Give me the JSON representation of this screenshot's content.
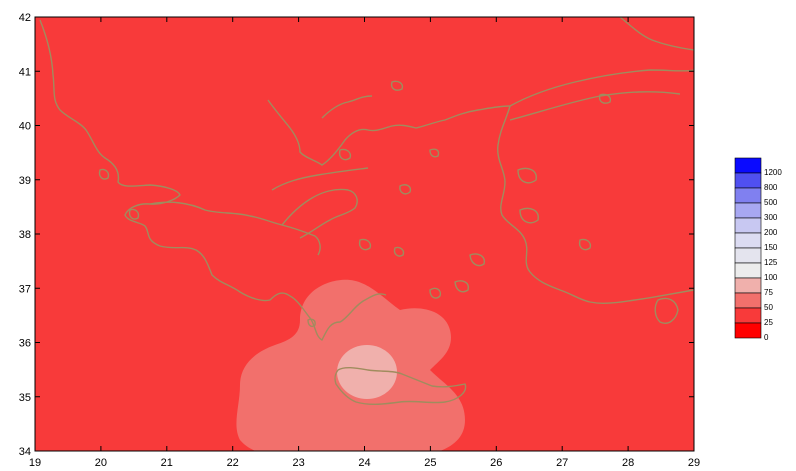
{
  "map": {
    "lon_range": [
      19,
      29
    ],
    "lat_range": [
      34,
      42
    ],
    "x_ticks": [
      "19",
      "20",
      "21",
      "22",
      "23",
      "24",
      "25",
      "26",
      "27",
      "28",
      "29"
    ],
    "y_ticks": [
      "34",
      "35",
      "36",
      "37",
      "38",
      "39",
      "40",
      "41",
      "42"
    ],
    "colors": {
      "background_fill": "#f83a3a",
      "zone_outer": "#f2706c",
      "zone_inner": "#f0b0ac",
      "coastline": "#a08c5e"
    },
    "zones": [
      {
        "name": "outer",
        "class": "50-75",
        "center_lon": 24.0,
        "center_lat": 35.6
      },
      {
        "name": "inner",
        "class": "75-100",
        "center_lon": 24.0,
        "center_lat": 35.45
      }
    ]
  },
  "legend": {
    "items": [
      {
        "label": "1200",
        "color": "#0a0aff"
      },
      {
        "label": "800",
        "color": "#5050f0"
      },
      {
        "label": "500",
        "color": "#8080f0"
      },
      {
        "label": "300",
        "color": "#a8a8f2"
      },
      {
        "label": "200",
        "color": "#c8c8f2"
      },
      {
        "label": "150",
        "color": "#dcdcf2"
      },
      {
        "label": "125",
        "color": "#e4e4ee"
      },
      {
        "label": "100",
        "color": "#ececec"
      },
      {
        "label": "75",
        "color": "#f0b0ac"
      },
      {
        "label": "50",
        "color": "#f2706c"
      },
      {
        "label": "25",
        "color": "#f83a3a"
      },
      {
        "label": "0",
        "color": "#ff0000"
      }
    ]
  }
}
